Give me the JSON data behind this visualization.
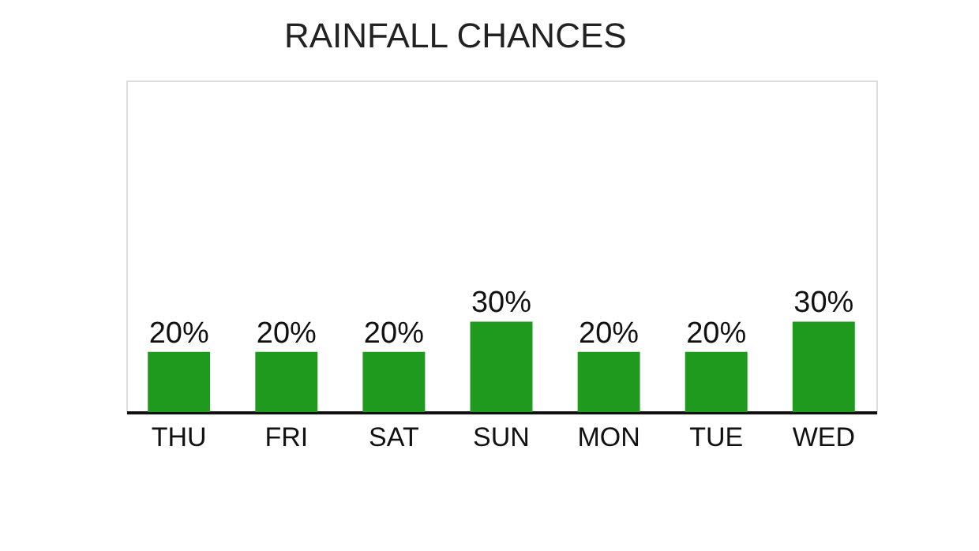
{
  "chart_data": {
    "type": "bar",
    "title": "RAINFALL CHANCES",
    "categories": [
      "THU",
      "FRI",
      "SAT",
      "SUN",
      "MON",
      "TUE",
      "WED"
    ],
    "values": [
      20,
      20,
      20,
      30,
      20,
      20,
      30
    ],
    "color": "#1f9a1f",
    "ylim": [
      0,
      110
    ],
    "data_labels": true,
    "value_labels": [
      "20%",
      "20%",
      "20%",
      "30%",
      "20%",
      "20%",
      "30%"
    ],
    "tick_labels": "x",
    "grid": false
  }
}
